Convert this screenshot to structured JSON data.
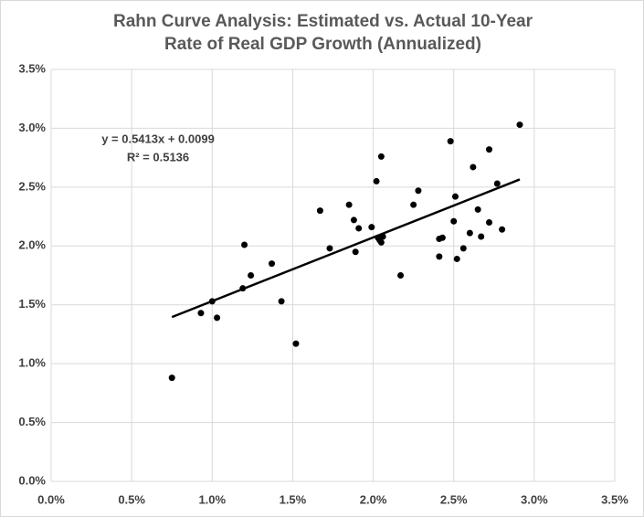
{
  "chart_data": {
    "type": "scatter",
    "title": "Rahn Curve Analysis: Estimated vs. Actual 10-Year Rate of Real GDP Growth (Annualized)",
    "annotations": [
      "y = 0.5413x + 0.0099",
      "R² = 0.5136"
    ],
    "trendline": {
      "slope": 0.5413,
      "intercept": 0.99,
      "color": "#000000"
    },
    "color": "#000000",
    "grid": true,
    "xlim": [
      0,
      3.5
    ],
    "ylim": [
      0,
      3.5
    ],
    "xticks": [
      {
        "value": 0,
        "label": "0.0%"
      },
      {
        "value": 0.5,
        "label": "0.5%"
      },
      {
        "value": 1,
        "label": "1.0%"
      },
      {
        "value": 1.5,
        "label": "1.5%"
      },
      {
        "value": 2,
        "label": "2.0%"
      },
      {
        "value": 2.5,
        "label": "2.5%"
      },
      {
        "value": 3,
        "label": "3.0%"
      },
      {
        "value": 3.5,
        "label": "3.5%"
      }
    ],
    "yticks": [
      {
        "value": 0,
        "label": "0.0%"
      },
      {
        "value": 0.5,
        "label": "0.5%"
      },
      {
        "value": 1,
        "label": "1.0%"
      },
      {
        "value": 1.5,
        "label": "1.5%"
      },
      {
        "value": 2,
        "label": "2.0%"
      },
      {
        "value": 2.5,
        "label": "2.5%"
      },
      {
        "value": 3,
        "label": "3.0%"
      },
      {
        "value": 3.5,
        "label": "3.5%"
      }
    ],
    "x": [
      0.75,
      0.93,
      1.0,
      1.03,
      1.2,
      1.19,
      1.24,
      1.37,
      1.43,
      1.52,
      1.67,
      1.73,
      1.85,
      1.88,
      1.89,
      1.91,
      1.99,
      2.02,
      2.03,
      2.04,
      2.05,
      2.05,
      2.06,
      2.17,
      2.25,
      2.28,
      2.41,
      2.43,
      2.41,
      2.48,
      2.5,
      2.51,
      2.52,
      2.56,
      2.6,
      2.62,
      2.65,
      2.67,
      2.72,
      2.72,
      2.77,
      2.8,
      2.91
    ],
    "values": [
      0.88,
      1.43,
      1.53,
      1.39,
      2.01,
      1.64,
      1.75,
      1.85,
      1.53,
      1.17,
      2.3,
      1.98,
      2.35,
      2.22,
      1.95,
      2.15,
      2.16,
      2.55,
      2.07,
      2.05,
      2.76,
      2.03,
      2.08,
      1.75,
      2.35,
      2.47,
      2.06,
      2.07,
      1.91,
      2.89,
      2.21,
      2.42,
      1.89,
      1.98,
      2.11,
      2.67,
      2.31,
      2.08,
      2.2,
      2.82,
      2.53,
      2.14,
      3.03
    ]
  }
}
